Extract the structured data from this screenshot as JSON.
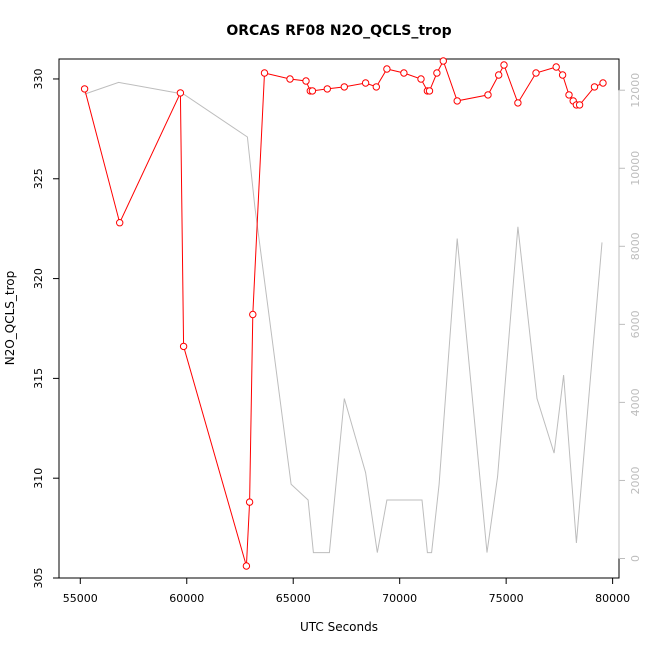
{
  "chart_data": {
    "type": "line",
    "title": "ORCAS RF08 N2O_QCLS_trop",
    "xlabel": "UTC Seconds",
    "ylabel": "N2O_QCLS_trop",
    "xlim": [
      54000,
      80300
    ],
    "ylim": [
      305,
      331
    ],
    "y2lim": [
      -500,
      12800
    ],
    "x_ticks": [
      55000,
      60000,
      65000,
      70000,
      75000,
      80000
    ],
    "y_ticks": [
      305,
      310,
      315,
      320,
      325,
      330
    ],
    "y2_ticks": [
      0,
      2000,
      4000,
      6000,
      8000,
      10000,
      12000
    ],
    "grid": false,
    "series": [
      {
        "axis": "left",
        "color": "#ff0000",
        "marker": "circle",
        "points": [
          [
            55200,
            329.5
          ],
          [
            56850,
            322.8
          ],
          [
            59700,
            329.3
          ],
          [
            59850,
            316.6
          ],
          [
            62800,
            305.6
          ],
          [
            62950,
            308.8
          ],
          [
            63100,
            318.2
          ],
          [
            63650,
            330.3
          ],
          [
            64850,
            330.0
          ],
          [
            65600,
            329.9
          ],
          [
            65800,
            329.4
          ],
          [
            65900,
            329.4
          ],
          [
            66600,
            329.5
          ],
          [
            67400,
            329.6
          ],
          [
            68400,
            329.8
          ],
          [
            68900,
            329.6
          ],
          [
            69400,
            330.5
          ],
          [
            70200,
            330.3
          ],
          [
            71000,
            330.0
          ],
          [
            71300,
            329.4
          ],
          [
            71400,
            329.4
          ],
          [
            71750,
            330.3
          ],
          [
            72050,
            330.9
          ],
          [
            72700,
            328.9
          ],
          [
            74150,
            329.2
          ],
          [
            74650,
            330.2
          ],
          [
            74900,
            330.7
          ],
          [
            75550,
            328.8
          ],
          [
            76400,
            330.3
          ],
          [
            77350,
            330.6
          ],
          [
            77650,
            330.2
          ],
          [
            77950,
            329.2
          ],
          [
            78150,
            328.9
          ],
          [
            78300,
            328.7
          ],
          [
            78450,
            328.7
          ],
          [
            79150,
            329.6
          ],
          [
            79550,
            329.8
          ]
        ]
      },
      {
        "axis": "right",
        "color": "#bdbdbd",
        "marker": "none",
        "points": [
          [
            55200,
            11900
          ],
          [
            56800,
            12200
          ],
          [
            59850,
            11900
          ],
          [
            62850,
            10800
          ],
          [
            63200,
            9000
          ],
          [
            64900,
            1900
          ],
          [
            65700,
            1500
          ],
          [
            65950,
            150
          ],
          [
            66700,
            150
          ],
          [
            67400,
            4100
          ],
          [
            68400,
            2200
          ],
          [
            68950,
            150
          ],
          [
            69400,
            1500
          ],
          [
            71050,
            1500
          ],
          [
            71300,
            150
          ],
          [
            71500,
            150
          ],
          [
            71850,
            1900
          ],
          [
            72700,
            8200
          ],
          [
            74100,
            150
          ],
          [
            74600,
            2100
          ],
          [
            75550,
            8500
          ],
          [
            76450,
            4100
          ],
          [
            77250,
            2700
          ],
          [
            77700,
            4700
          ],
          [
            78300,
            400
          ],
          [
            79500,
            8100
          ]
        ]
      }
    ]
  }
}
